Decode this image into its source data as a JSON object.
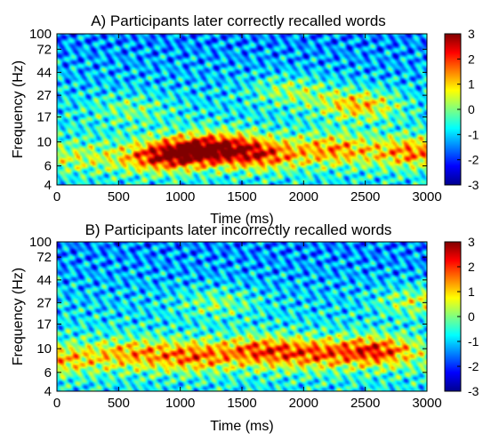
{
  "colormap": "jet",
  "colors": {
    "jet": [
      "#00008f",
      "#0000ff",
      "#00ffff",
      "#ffff00",
      "#ff0000",
      "#800000"
    ]
  },
  "chart_data": [
    {
      "type": "heatmap",
      "title": "A) Participants later correctly recalled words",
      "xlabel": "Time (ms)",
      "ylabel": "Frequency (Hz)",
      "x_ticks": [
        0,
        500,
        1000,
        1500,
        2000,
        2500,
        3000
      ],
      "xlim": [
        0,
        3000
      ],
      "y_ticks": [
        4,
        6,
        10,
        17,
        27,
        44,
        72,
        100
      ],
      "ylim": [
        4,
        100
      ],
      "y_scale": "log",
      "colorbar": {
        "ticks": [
          3,
          2,
          1,
          0,
          -1,
          -2,
          -3
        ],
        "range": [
          -3,
          3
        ]
      },
      "blobs": [
        {
          "time": 1050,
          "freq": 8.0,
          "value": 2.6
        },
        {
          "time": 1350,
          "freq": 9.0,
          "value": 2.2
        },
        {
          "time": 1650,
          "freq": 7.5,
          "value": 2.1
        },
        {
          "time": 800,
          "freq": 7.0,
          "value": 1.8
        },
        {
          "time": 2250,
          "freq": 8.5,
          "value": 1.8
        },
        {
          "time": 2900,
          "freq": 8.0,
          "value": 2.0
        },
        {
          "time": 2450,
          "freq": 22,
          "value": 2.0
        },
        {
          "time": 1900,
          "freq": 30,
          "value": 1.2
        },
        {
          "time": 150,
          "freq": 7.0,
          "value": 0.8
        },
        {
          "time": 600,
          "freq": 20,
          "value": 0.8
        }
      ]
    },
    {
      "type": "heatmap",
      "title": "B) Participants later incorrectly recalled words",
      "xlabel": "Time (ms)",
      "ylabel": "Frequency (Hz)",
      "x_ticks": [
        0,
        500,
        1000,
        1500,
        2000,
        2500,
        3000
      ],
      "xlim": [
        0,
        3000
      ],
      "y_ticks": [
        4,
        6,
        10,
        17,
        27,
        44,
        72,
        100
      ],
      "ylim": [
        4,
        100
      ],
      "y_scale": "log",
      "colorbar": {
        "ticks": [
          3,
          2,
          1,
          0,
          -1,
          -2,
          -3
        ],
        "range": [
          -3,
          3
        ]
      },
      "blobs": [
        {
          "time": 2600,
          "freq": 9.5,
          "value": 2.6
        },
        {
          "time": 1650,
          "freq": 9.5,
          "value": 2.2
        },
        {
          "time": 1100,
          "freq": 8.5,
          "value": 2.0
        },
        {
          "time": 2100,
          "freq": 9.0,
          "value": 1.9
        },
        {
          "time": 600,
          "freq": 9.0,
          "value": 1.6
        },
        {
          "time": 30,
          "freq": 8.0,
          "value": 1.5
        },
        {
          "time": 2950,
          "freq": 28,
          "value": 1.4
        },
        {
          "time": 1300,
          "freq": 27,
          "value": 1.0
        }
      ]
    }
  ]
}
